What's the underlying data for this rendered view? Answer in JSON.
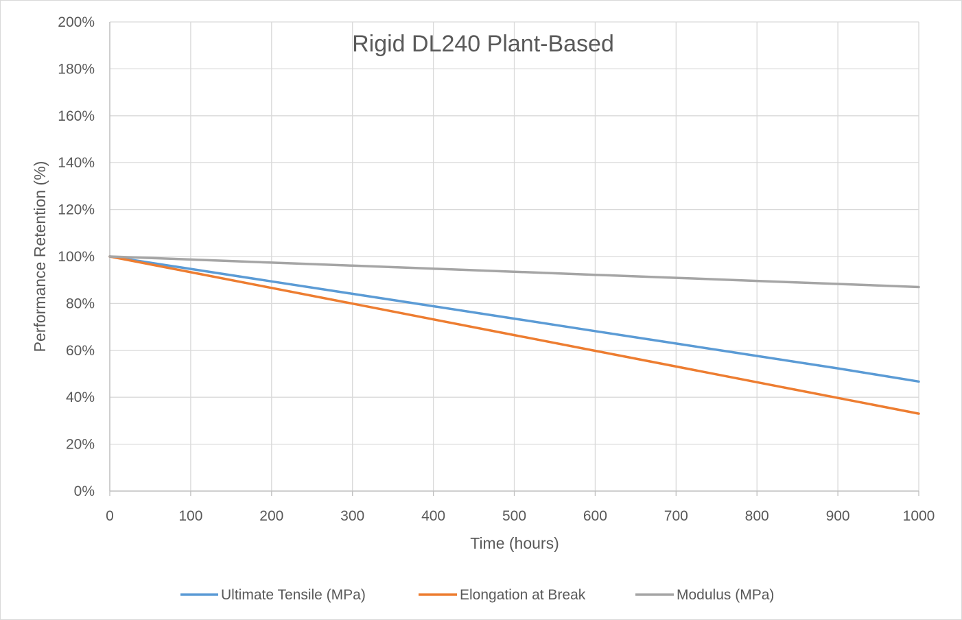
{
  "chart_data": {
    "type": "line",
    "title": "Rigid DL240 Plant-Based",
    "xlabel": "Time (hours)",
    "ylabel": "Performance Retention (%)",
    "xlim": [
      0,
      1000
    ],
    "ylim": [
      0,
      200
    ],
    "x_ticks": [
      0,
      100,
      200,
      300,
      400,
      500,
      600,
      700,
      800,
      900,
      1000
    ],
    "y_ticks": [
      0,
      20,
      40,
      60,
      80,
      100,
      120,
      140,
      160,
      180,
      200
    ],
    "y_tick_suffix": "%",
    "grid": true,
    "legend_position": "bottom",
    "x": [
      0,
      100,
      200,
      300,
      400,
      500,
      600,
      700,
      800,
      900,
      1000
    ],
    "series": [
      {
        "name": "Ultimate Tensile (MPa)",
        "color": "#5b9bd5",
        "values": [
          100,
          94.7,
          89.4,
          84.1,
          78.8,
          73.5,
          68.2,
          62.9,
          57.6,
          52.3,
          46.7
        ]
      },
      {
        "name": "Elongation at Break",
        "color": "#ed7d31",
        "values": [
          100,
          93.3,
          86.6,
          79.9,
          73.2,
          66.5,
          59.8,
          53.1,
          46.4,
          39.7,
          33.0
        ]
      },
      {
        "name": "Modulus (MPa)",
        "color": "#a5a5a5",
        "values": [
          100,
          98.7,
          97.4,
          96.1,
          94.8,
          93.5,
          92.2,
          90.9,
          89.6,
          88.3,
          87.0
        ]
      }
    ]
  }
}
